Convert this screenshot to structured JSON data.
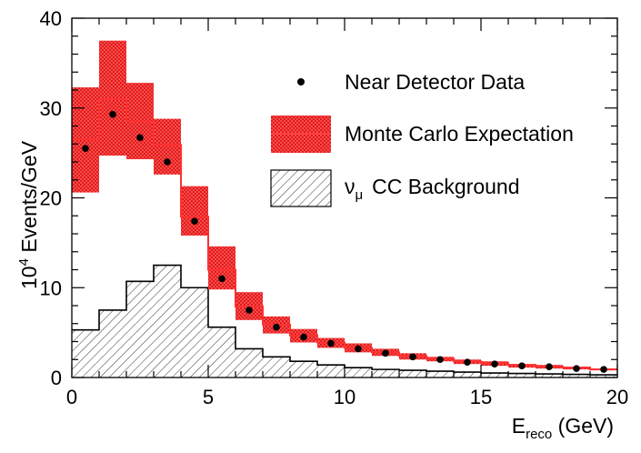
{
  "chart_data": {
    "type": "bar",
    "xlabel": "E",
    "xlabel_sub": "reco",
    "xlabel_unit": " (GeV)",
    "ylabel_prefix": "10",
    "ylabel_sup": "4",
    "ylabel_suffix": " Events/GeV",
    "xlim": [
      0,
      20
    ],
    "ylim": [
      0,
      40
    ],
    "x_ticks": [
      0,
      5,
      10,
      15,
      20
    ],
    "x_tick_labels": [
      "0",
      "5",
      "10",
      "15",
      "20"
    ],
    "y_ticks": [
      0,
      10,
      20,
      30,
      40
    ],
    "y_tick_labels": [
      "0",
      "10",
      "20",
      "30",
      "40"
    ],
    "bin_edges": [
      0,
      1,
      2,
      3,
      4,
      5,
      6,
      7,
      8,
      9,
      10,
      11,
      12,
      13,
      14,
      15,
      16,
      17,
      18,
      19,
      20
    ],
    "series": [
      {
        "name": "Near Detector Data",
        "kind": "points",
        "x": [
          0.5,
          1.5,
          2.5,
          3.5,
          4.5,
          5.5,
          6.5,
          7.5,
          8.5,
          9.5,
          10.5,
          11.5,
          12.5,
          13.5,
          14.5,
          15.5,
          16.5,
          17.5,
          18.5,
          19.5
        ],
        "values": [
          25.5,
          29.3,
          26.7,
          24.0,
          17.4,
          11.0,
          7.5,
          5.6,
          4.5,
          3.8,
          3.2,
          2.7,
          2.3,
          2.0,
          1.7,
          1.5,
          1.3,
          1.2,
          1.0,
          0.9
        ]
      },
      {
        "name": "Monte Carlo Expectation",
        "kind": "band",
        "values": [
          26.5,
          31.0,
          28.5,
          25.9,
          17.9,
          12.0,
          7.9,
          5.9,
          4.7,
          3.9,
          3.3,
          2.8,
          2.4,
          2.1,
          1.8,
          1.6,
          1.4,
          1.2,
          1.1,
          0.9
        ],
        "lower": [
          20.6,
          24.7,
          24.3,
          22.6,
          15.8,
          9.8,
          6.4,
          4.9,
          3.9,
          3.3,
          2.8,
          2.4,
          2.0,
          1.8,
          1.5,
          1.3,
          1.1,
          1.0,
          0.9,
          0.8
        ],
        "upper": [
          32.3,
          37.5,
          32.8,
          28.8,
          21.3,
          14.6,
          9.5,
          6.8,
          5.4,
          4.4,
          3.8,
          3.2,
          2.7,
          2.3,
          2.0,
          1.8,
          1.5,
          1.4,
          1.2,
          1.0
        ]
      },
      {
        "name": "CC Background",
        "name_prefix": "ν",
        "name_sub": "μ",
        "kind": "hatched-histogram",
        "values": [
          5.3,
          7.5,
          10.7,
          12.5,
          10.0,
          5.6,
          3.2,
          2.3,
          1.8,
          1.4,
          1.1,
          0.9,
          0.8,
          0.7,
          0.6,
          0.5,
          0.45,
          0.4,
          0.35,
          0.3
        ]
      }
    ],
    "legend_position": "top-right",
    "grid": false,
    "colors": {
      "band": "#ee1111",
      "band_edge": "#ff5555",
      "points": "#000000",
      "hatch": "#000000"
    }
  }
}
